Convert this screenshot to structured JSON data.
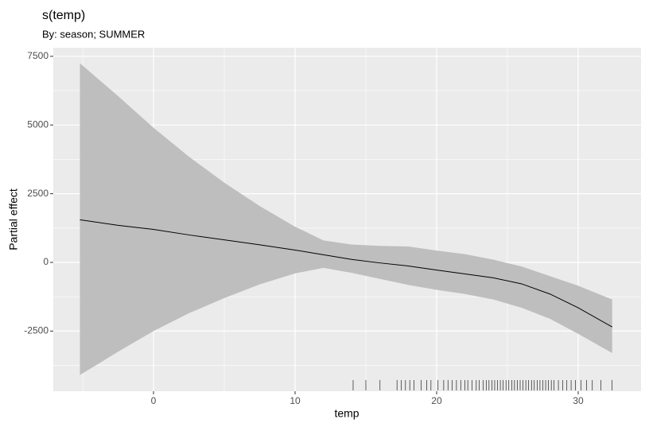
{
  "chart_data": {
    "type": "line",
    "title": "s(temp)",
    "subtitle": "By: season; SUMMER",
    "xlabel": "temp",
    "ylabel": "Partial effect",
    "x": [
      -5.2,
      -2.5,
      0,
      2.5,
      5,
      7.5,
      10,
      12,
      14,
      16,
      18,
      20,
      22,
      24,
      26,
      28,
      30,
      32.4
    ],
    "values": [
      1550,
      1350,
      1200,
      1000,
      820,
      640,
      450,
      280,
      110,
      -20,
      -130,
      -280,
      -420,
      -560,
      -780,
      -1150,
      -1650,
      -2350
    ],
    "upper": [
      7250,
      6050,
      4900,
      3850,
      2900,
      2050,
      1300,
      800,
      650,
      600,
      580,
      430,
      300,
      100,
      -150,
      -500,
      -850,
      -1350
    ],
    "lower": [
      -4100,
      -3250,
      -2500,
      -1850,
      -1300,
      -800,
      -400,
      -200,
      -380,
      -600,
      -820,
      -1000,
      -1150,
      -1350,
      -1650,
      -2050,
      -2600,
      -3300
    ],
    "rug": [
      14.1,
      15.0,
      16.0,
      17.2,
      17.5,
      17.8,
      18.1,
      18.4,
      18.9,
      19.3,
      19.6,
      20.1,
      20.5,
      20.8,
      21.1,
      21.4,
      21.7,
      22.0,
      22.2,
      22.5,
      22.8,
      23.0,
      23.3,
      23.5,
      23.7,
      23.9,
      24.1,
      24.3,
      24.5,
      24.7,
      24.9,
      25.1,
      25.3,
      25.5,
      25.7,
      25.9,
      26.1,
      26.3,
      26.5,
      26.7,
      26.9,
      27.1,
      27.3,
      27.5,
      27.7,
      27.9,
      28.1,
      28.3,
      28.6,
      28.9,
      29.2,
      29.5,
      29.8,
      30.2,
      30.6,
      31.0,
      31.6,
      32.4
    ],
    "color": "#000000",
    "ribbon_color": "#bebebe",
    "rug_color": "#000000",
    "xlim": [
      -7.08,
      34.44
    ],
    "ylim": [
      -4688,
      7813
    ],
    "xticks": [
      0,
      10,
      20,
      30
    ],
    "yticks": [
      7500,
      5000,
      2500,
      0,
      -2500
    ],
    "grid": true
  }
}
